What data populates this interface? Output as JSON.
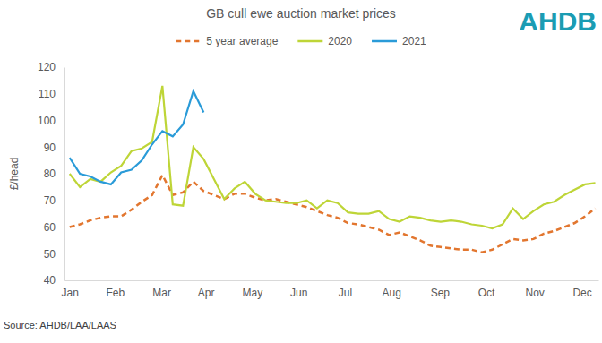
{
  "chart_data": {
    "type": "line",
    "title": "GB cull ewe auction market prices",
    "y_label": "£/head",
    "annotations": [
      "Source: AHDB/LAA/LAAS",
      "AHDB"
    ],
    "x": [
      1,
      2,
      3,
      4,
      5,
      6,
      7,
      8,
      9,
      10,
      11,
      12,
      13,
      14,
      15,
      16,
      17,
      18,
      19,
      20,
      21,
      22,
      23,
      24,
      25,
      26,
      27,
      28,
      29,
      30,
      31,
      32,
      33,
      34,
      35,
      36,
      37,
      38,
      39,
      40,
      41,
      42,
      43,
      44,
      45,
      46,
      47,
      48,
      49,
      50,
      51,
      52
    ],
    "xlim": [
      0.5,
      52.3
    ],
    "xticks": [
      {
        "value": 1,
        "label": "Jan"
      },
      {
        "value": 5.4,
        "label": "Feb"
      },
      {
        "value": 9.9,
        "label": "Mar"
      },
      {
        "value": 14.2,
        "label": "Apr"
      },
      {
        "value": 18.7,
        "label": "May"
      },
      {
        "value": 23.2,
        "label": "Jun"
      },
      {
        "value": 27.7,
        "label": "Jul"
      },
      {
        "value": 32.2,
        "label": "Aug"
      },
      {
        "value": 36.9,
        "label": "Sep"
      },
      {
        "value": 41.4,
        "label": "Oct"
      },
      {
        "value": 46.1,
        "label": "Nov"
      },
      {
        "value": 50.7,
        "label": "Dec"
      }
    ],
    "ylim": [
      40,
      120
    ],
    "yticks": [
      40,
      50,
      60,
      70,
      80,
      90,
      100,
      110,
      120
    ],
    "grid": false,
    "legend": "top",
    "series": [
      {
        "name": "5 year average",
        "color": "#e2762f",
        "line_style": "dashed",
        "values": [
          60,
          61,
          62.5,
          63.5,
          64,
          64,
          66.5,
          69.5,
          72,
          79.5,
          72,
          73,
          77,
          73.5,
          72,
          70.5,
          72.5,
          72.5,
          71,
          70,
          70.5,
          69.5,
          68.5,
          67.5,
          66,
          64.5,
          63.5,
          61.5,
          61,
          60,
          59,
          57,
          58,
          56.5,
          55,
          53,
          52.5,
          52,
          51.5,
          51.5,
          50.5,
          51.5,
          53.5,
          55.5,
          55,
          55.5,
          57.5,
          58.5,
          60,
          61.5,
          64,
          67
        ]
      },
      {
        "name": "2020",
        "color": "#bed537",
        "line_style": "solid",
        "values": [
          80,
          75,
          78,
          77,
          80.5,
          83,
          88.5,
          89.5,
          92,
          113,
          68.5,
          68,
          90,
          85.5,
          78,
          70.5,
          74.5,
          77,
          72.5,
          70,
          69.5,
          69,
          69,
          70,
          67,
          70,
          69,
          65.5,
          65,
          65,
          66,
          63,
          62,
          64,
          63.5,
          62.5,
          62,
          62.5,
          62,
          61,
          60.5,
          59.5,
          61,
          67,
          63,
          66,
          68.5,
          69.5,
          72,
          74,
          76,
          76.5
        ]
      },
      {
        "name": "2021",
        "color": "#2a9bd8",
        "line_style": "solid",
        "values": [
          86,
          80,
          79,
          77,
          76,
          80.5,
          81.5,
          85,
          91,
          96,
          94,
          98.5,
          111,
          103,
          null,
          null,
          null,
          null,
          null,
          null,
          null,
          null,
          null,
          null,
          null,
          null,
          null,
          null,
          null,
          null,
          null,
          null,
          null,
          null,
          null,
          null,
          null,
          null,
          null,
          null,
          null,
          null,
          null,
          null,
          null,
          null,
          null,
          null,
          null,
          null,
          null,
          null
        ]
      }
    ]
  }
}
